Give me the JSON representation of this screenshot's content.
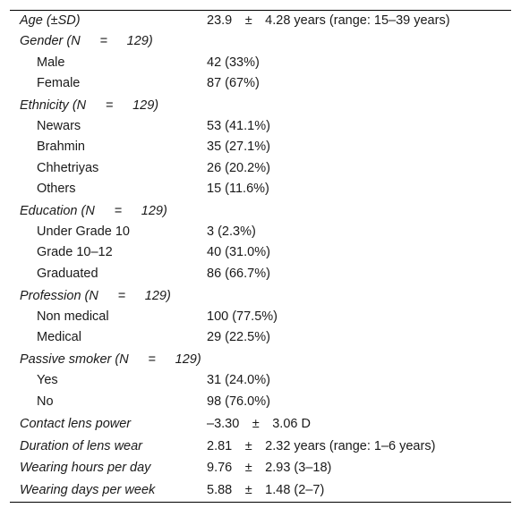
{
  "table": {
    "rows": [
      {
        "label": "Age (±SD)",
        "value": "23.9  ±  4.28 years (range: 15–39 years)",
        "italic": true,
        "indent": false
      },
      {
        "label": "Gender (N   =   129)",
        "value": "",
        "italic": true,
        "indent": false
      },
      {
        "label": "Male",
        "value": "42 (33%)",
        "italic": false,
        "indent": true
      },
      {
        "label": "Female",
        "value": "87 (67%)",
        "italic": false,
        "indent": true
      },
      {
        "label": "Ethnicity (N   =   129)",
        "value": "",
        "italic": true,
        "indent": false
      },
      {
        "label": "Newars",
        "value": "53 (41.1%)",
        "italic": false,
        "indent": true
      },
      {
        "label": "Brahmin",
        "value": "35 (27.1%)",
        "italic": false,
        "indent": true
      },
      {
        "label": "Chhetriyas",
        "value": "26 (20.2%)",
        "italic": false,
        "indent": true
      },
      {
        "label": "Others",
        "value": "15 (11.6%)",
        "italic": false,
        "indent": true
      },
      {
        "label": "Education (N   =   129)",
        "value": "",
        "italic": true,
        "indent": false
      },
      {
        "label": "Under Grade 10",
        "value": "3 (2.3%)",
        "italic": false,
        "indent": true
      },
      {
        "label": "Grade 10–12",
        "value": "40 (31.0%)",
        "italic": false,
        "indent": true
      },
      {
        "label": "Graduated",
        "value": "86 (66.7%)",
        "italic": false,
        "indent": true
      },
      {
        "label": "Profession (N   =   129)",
        "value": "",
        "italic": true,
        "indent": false
      },
      {
        "label": "Non medical",
        "value": "100 (77.5%)",
        "italic": false,
        "indent": true
      },
      {
        "label": "Medical",
        "value": "29 (22.5%)",
        "italic": false,
        "indent": true
      },
      {
        "label": "Passive smoker (N   =   129)",
        "value": "",
        "italic": true,
        "indent": false
      },
      {
        "label": "Yes",
        "value": "31 (24.0%)",
        "italic": false,
        "indent": true
      },
      {
        "label": "No",
        "value": "98 (76.0%)",
        "italic": false,
        "indent": true
      },
      {
        "label": "Contact lens power",
        "value": "–3.30  ±  3.06 D",
        "italic": true,
        "indent": false
      },
      {
        "label": "Duration of lens wear",
        "value": "2.81  ±  2.32 years (range: 1–6 years)",
        "italic": true,
        "indent": false
      },
      {
        "label": "Wearing hours per day",
        "value": "9.76  ±  2.93 (3–18)",
        "italic": true,
        "indent": false
      },
      {
        "label": "Wearing days per week",
        "value": "5.88  ±  1.48 (2–7)",
        "italic": true,
        "indent": false
      }
    ]
  }
}
